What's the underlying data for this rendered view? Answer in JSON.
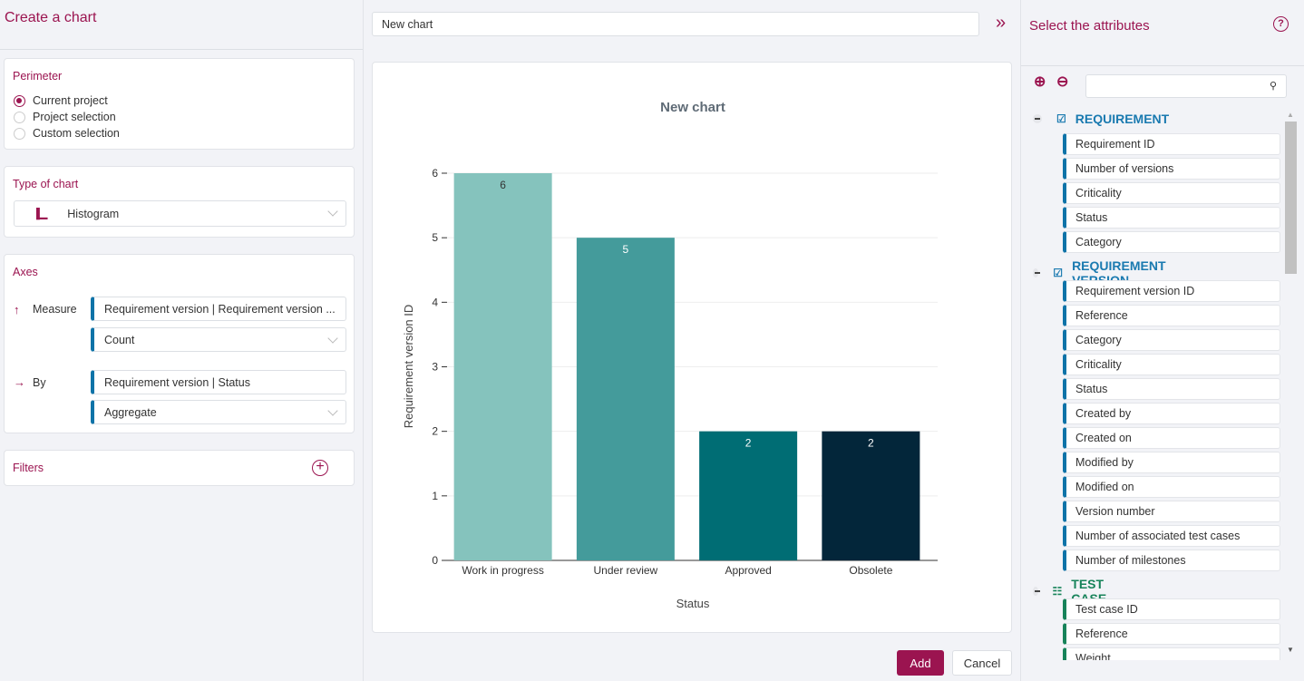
{
  "left": {
    "title": "Create a chart",
    "perimeter": {
      "title": "Perimeter",
      "options": [
        "Current project",
        "Project selection",
        "Custom selection"
      ],
      "selected": "Current project"
    },
    "type": {
      "title": "Type of chart",
      "value": "Histogram",
      "icon": "bar-chart-icon"
    },
    "axes": {
      "title": "Axes",
      "measure_label": "Measure",
      "measure_field": "Requirement version | Requirement version ...",
      "measure_op": "Count",
      "by_label": "By",
      "by_field": "Requirement version | Status",
      "by_op": "Aggregate"
    },
    "filters": {
      "title": "Filters"
    }
  },
  "center": {
    "name_value": "New chart",
    "add": "Add",
    "cancel": "Cancel"
  },
  "chart_data": {
    "type": "bar",
    "title": "New chart",
    "xlabel": "Status",
    "ylabel": "Requirement version ID",
    "categories": [
      "Work in progress",
      "Under review",
      "Approved",
      "Obsolete"
    ],
    "values": [
      6,
      5,
      2,
      2
    ],
    "colors": [
      "#85c3bd",
      "#449b9b",
      "#006d74",
      "#03263a"
    ],
    "yticks": [
      "0",
      "1",
      "2",
      "3",
      "4",
      "5",
      "6"
    ],
    "ylim": [
      0,
      6
    ],
    "grid": true
  },
  "right": {
    "title": "Select the attributes",
    "groups": [
      {
        "name": "REQUIREMENT",
        "color": "#1a7ab0",
        "items": [
          "Requirement ID",
          "Number of versions",
          "Criticality",
          "Status",
          "Category"
        ]
      },
      {
        "name": "REQUIREMENT VERSION",
        "color": "#1a7ab0",
        "items": [
          "Requirement version ID",
          "Reference",
          "Category",
          "Criticality",
          "Status",
          "Created by",
          "Created on",
          "Modified by",
          "Modified on",
          "Version number",
          "Number of associated test cases",
          "Number of milestones"
        ]
      },
      {
        "name": "TEST CASE",
        "color": "#17835a",
        "items": [
          "Test case ID",
          "Reference",
          "Weight"
        ]
      }
    ]
  }
}
